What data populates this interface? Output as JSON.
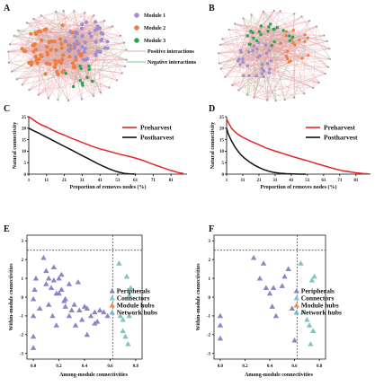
{
  "panels": {
    "A": "A",
    "B": "B",
    "C": "C",
    "D": "D",
    "E": "E",
    "F": "F"
  },
  "network_legend": {
    "items": [
      {
        "label": "Module 1",
        "color": "#9b8fd0",
        "kind": "node"
      },
      {
        "label": "Module 2",
        "color": "#ef7d3d",
        "kind": "node"
      },
      {
        "label": "Module 3",
        "color": "#29a35a",
        "kind": "node"
      },
      {
        "label": "Positive interactions",
        "color": "#e8a3a7",
        "kind": "line"
      },
      {
        "label": "Negative interactions",
        "color": "#7fc38a",
        "kind": "line"
      }
    ]
  },
  "colors": {
    "preharvest": "#e3262b",
    "postharvest": "#111111",
    "peripherals": "#8b85c7",
    "connectors": "#7fc6c0",
    "module_hubs": "#ef8e4a",
    "network_hubs": "#76b8cf"
  },
  "chart_data": [
    {
      "id": "C",
      "type": "line",
      "ylabel": "Natural connectivity",
      "xlabel": "Proportion of removes nodes (%)",
      "xlim": [
        1,
        90
      ],
      "ylim": [
        0,
        25
      ],
      "xticks": [
        "1",
        "11",
        "21",
        "31",
        "41",
        "51",
        "61",
        "71",
        "81"
      ],
      "yticks": [
        "0",
        "5",
        "10",
        "15",
        "20",
        "25"
      ],
      "legend": [
        "Preharvest",
        "Postharvest"
      ],
      "legend_position": "top-right",
      "series": [
        {
          "name": "Preharvest",
          "x": [
            1,
            3,
            5,
            8,
            11,
            14,
            17,
            21,
            25,
            29,
            33,
            37,
            41,
            45,
            49,
            53,
            57,
            61,
            65,
            69,
            73,
            77,
            81,
            85,
            88
          ],
          "y": [
            25,
            24,
            22.8,
            21.5,
            20.5,
            19.3,
            18.2,
            17,
            15.6,
            14.4,
            13.2,
            12,
            11,
            10.2,
            9.3,
            8.5,
            7.8,
            7,
            6,
            4.8,
            3.7,
            2.6,
            1.6,
            0.7,
            0.3
          ]
        },
        {
          "name": "Postharvest",
          "x": [
            1,
            4,
            7,
            10,
            13,
            16,
            19,
            22,
            25,
            28,
            31,
            34,
            37,
            40,
            43,
            46,
            49,
            52,
            55,
            58,
            61
          ],
          "y": [
            20,
            18.8,
            17.7,
            16.5,
            15.3,
            14.1,
            12.9,
            11.7,
            10.5,
            9.3,
            8.1,
            6.9,
            5.7,
            4.5,
            3.4,
            2.4,
            1.5,
            0.8,
            0.3,
            0.1,
            0
          ]
        }
      ]
    },
    {
      "id": "D",
      "type": "line",
      "ylabel": "Natural connectivity",
      "xlabel": "Proportion of removes nodes (%)",
      "xlim": [
        1,
        90
      ],
      "ylim": [
        0,
        25
      ],
      "xticks": [
        "1",
        "11",
        "21",
        "31",
        "41",
        "51",
        "61",
        "71",
        "81"
      ],
      "yticks": [
        "0",
        "5",
        "10",
        "15",
        "20",
        "25"
      ],
      "legend": [
        "Preharvest",
        "Postharvest"
      ],
      "legend_position": "top-right",
      "series": [
        {
          "name": "Preharvest",
          "x": [
            1,
            2,
            4,
            6,
            8,
            11,
            14,
            17,
            21,
            25,
            29,
            33,
            37,
            41,
            45,
            49,
            53,
            57,
            61,
            65,
            69,
            73,
            77,
            81,
            85,
            89
          ],
          "y": [
            24,
            22.5,
            20,
            18.5,
            17.3,
            16,
            15,
            14,
            12.8,
            11.5,
            10.5,
            9.6,
            8.7,
            7.8,
            7,
            6.2,
            5.4,
            4.5,
            3.7,
            2.9,
            2.1,
            1.5,
            1,
            0.6,
            0.3,
            0.1
          ]
        },
        {
          "name": "Postharvest",
          "x": [
            1,
            2,
            4,
            6,
            8,
            10,
            12,
            15,
            18,
            21,
            24,
            27,
            30,
            34,
            38,
            42,
            46,
            50
          ],
          "y": [
            20,
            17.5,
            14.5,
            12,
            10,
            8.3,
            7,
            5.4,
            4,
            2.9,
            2,
            1.3,
            0.8,
            0.4,
            0.2,
            0.1,
            0,
            0
          ]
        }
      ]
    },
    {
      "id": "E",
      "type": "scatter",
      "ylabel": "Within-module connectivities",
      "xlabel": "Among-module connectivities",
      "xlim": [
        -0.05,
        0.85
      ],
      "ylim": [
        -3.3,
        3.3
      ],
      "xticks": [
        "0.0",
        "0.2",
        "0.4",
        "0.6",
        "0.8"
      ],
      "yticks": [
        "-3",
        "-2",
        "-1",
        "0",
        "1",
        "2",
        "3"
      ],
      "thresholds": {
        "x": 0.62,
        "y": 2.5
      },
      "legend": [
        "Peripherals",
        "Connectors",
        "Module hubs",
        "Network hubs"
      ],
      "legend_position": "right",
      "series": [
        {
          "name": "Peripherals",
          "x": [
            0.0,
            0.0,
            0.0,
            0.0,
            0.01,
            0.02,
            0.05,
            0.08,
            0.1,
            0.12,
            0.14,
            0.16,
            0.18,
            0.2,
            0.22,
            0.24,
            0.12,
            0.15,
            0.18,
            0.2,
            0.25,
            0.28,
            0.3,
            0.33,
            0.36,
            0.38,
            0.4,
            0.42,
            0.45,
            0.48,
            0.5,
            0.52,
            0.55,
            0.58,
            0.1,
            0.16,
            0.22,
            0.28,
            0.35,
            0.42,
            0.48,
            0.25,
            0.32
          ],
          "y": [
            -1.0,
            -2.1,
            -2.7,
            -0.1,
            0.4,
            1.0,
            -0.6,
            2.1,
            1.4,
            1.0,
            0.5,
            0.9,
            0.2,
            1.0,
            0.4,
            -0.2,
            -0.4,
            -1.0,
            -1.5,
            0.2,
            -0.5,
            -1.0,
            -0.7,
            -1.5,
            -0.7,
            -1.2,
            -0.5,
            -2.0,
            -1.0,
            -0.8,
            -1.3,
            -0.7,
            -0.8,
            -1.0,
            0.7,
            1.6,
            1.2,
            0.7,
            0.8,
            -0.6,
            -1.4,
            -0.1,
            -0.4
          ]
        },
        {
          "name": "Connectors",
          "x": [
            0.67,
            0.68,
            0.7,
            0.7,
            0.72,
            0.73,
            0.74,
            0.75,
            0.75,
            0.76
          ],
          "y": [
            1.8,
            -1.0,
            -1.2,
            -1.8,
            -2.1,
            1.1,
            -2.5,
            0.1,
            -1.0,
            0.5
          ]
        }
      ]
    },
    {
      "id": "F",
      "type": "scatter",
      "ylabel": "Within-module connectivities",
      "xlabel": "Among-module connectivities",
      "xlim": [
        -0.05,
        0.85
      ],
      "ylim": [
        -3.3,
        3.3
      ],
      "xticks": [
        "0.0",
        "0.2",
        "0.4",
        "0.6",
        "0.8"
      ],
      "yticks": [
        "-3",
        "-2",
        "-1",
        "0",
        "1",
        "2",
        "3"
      ],
      "thresholds": {
        "x": 0.62,
        "y": 2.5
      },
      "legend": [
        "Peripherals",
        "Connectors",
        "Module hubs",
        "Network hubs"
      ],
      "legend_position": "right",
      "series": [
        {
          "name": "Peripherals",
          "x": [
            0.0,
            0.0,
            0.0,
            0.27,
            0.32,
            0.35,
            0.37,
            0.4,
            0.42,
            0.43,
            0.45,
            0.5,
            0.52,
            0.55,
            0.58,
            0.6
          ],
          "y": [
            -1.0,
            -1.5,
            -2.2,
            2.1,
            1.0,
            1.8,
            0.5,
            0.2,
            -0.5,
            0.5,
            -1.0,
            0.6,
            1.1,
            1.5,
            -0.6,
            -2.3
          ]
        },
        {
          "name": "Connectors",
          "x": [
            0.65,
            0.67,
            0.7,
            0.72,
            0.73,
            0.74,
            0.75,
            0.76
          ],
          "y": [
            1.8,
            -0.8,
            -1.2,
            -1.5,
            -2.5,
            0.9,
            -1.8,
            1.1
          ]
        }
      ]
    }
  ]
}
